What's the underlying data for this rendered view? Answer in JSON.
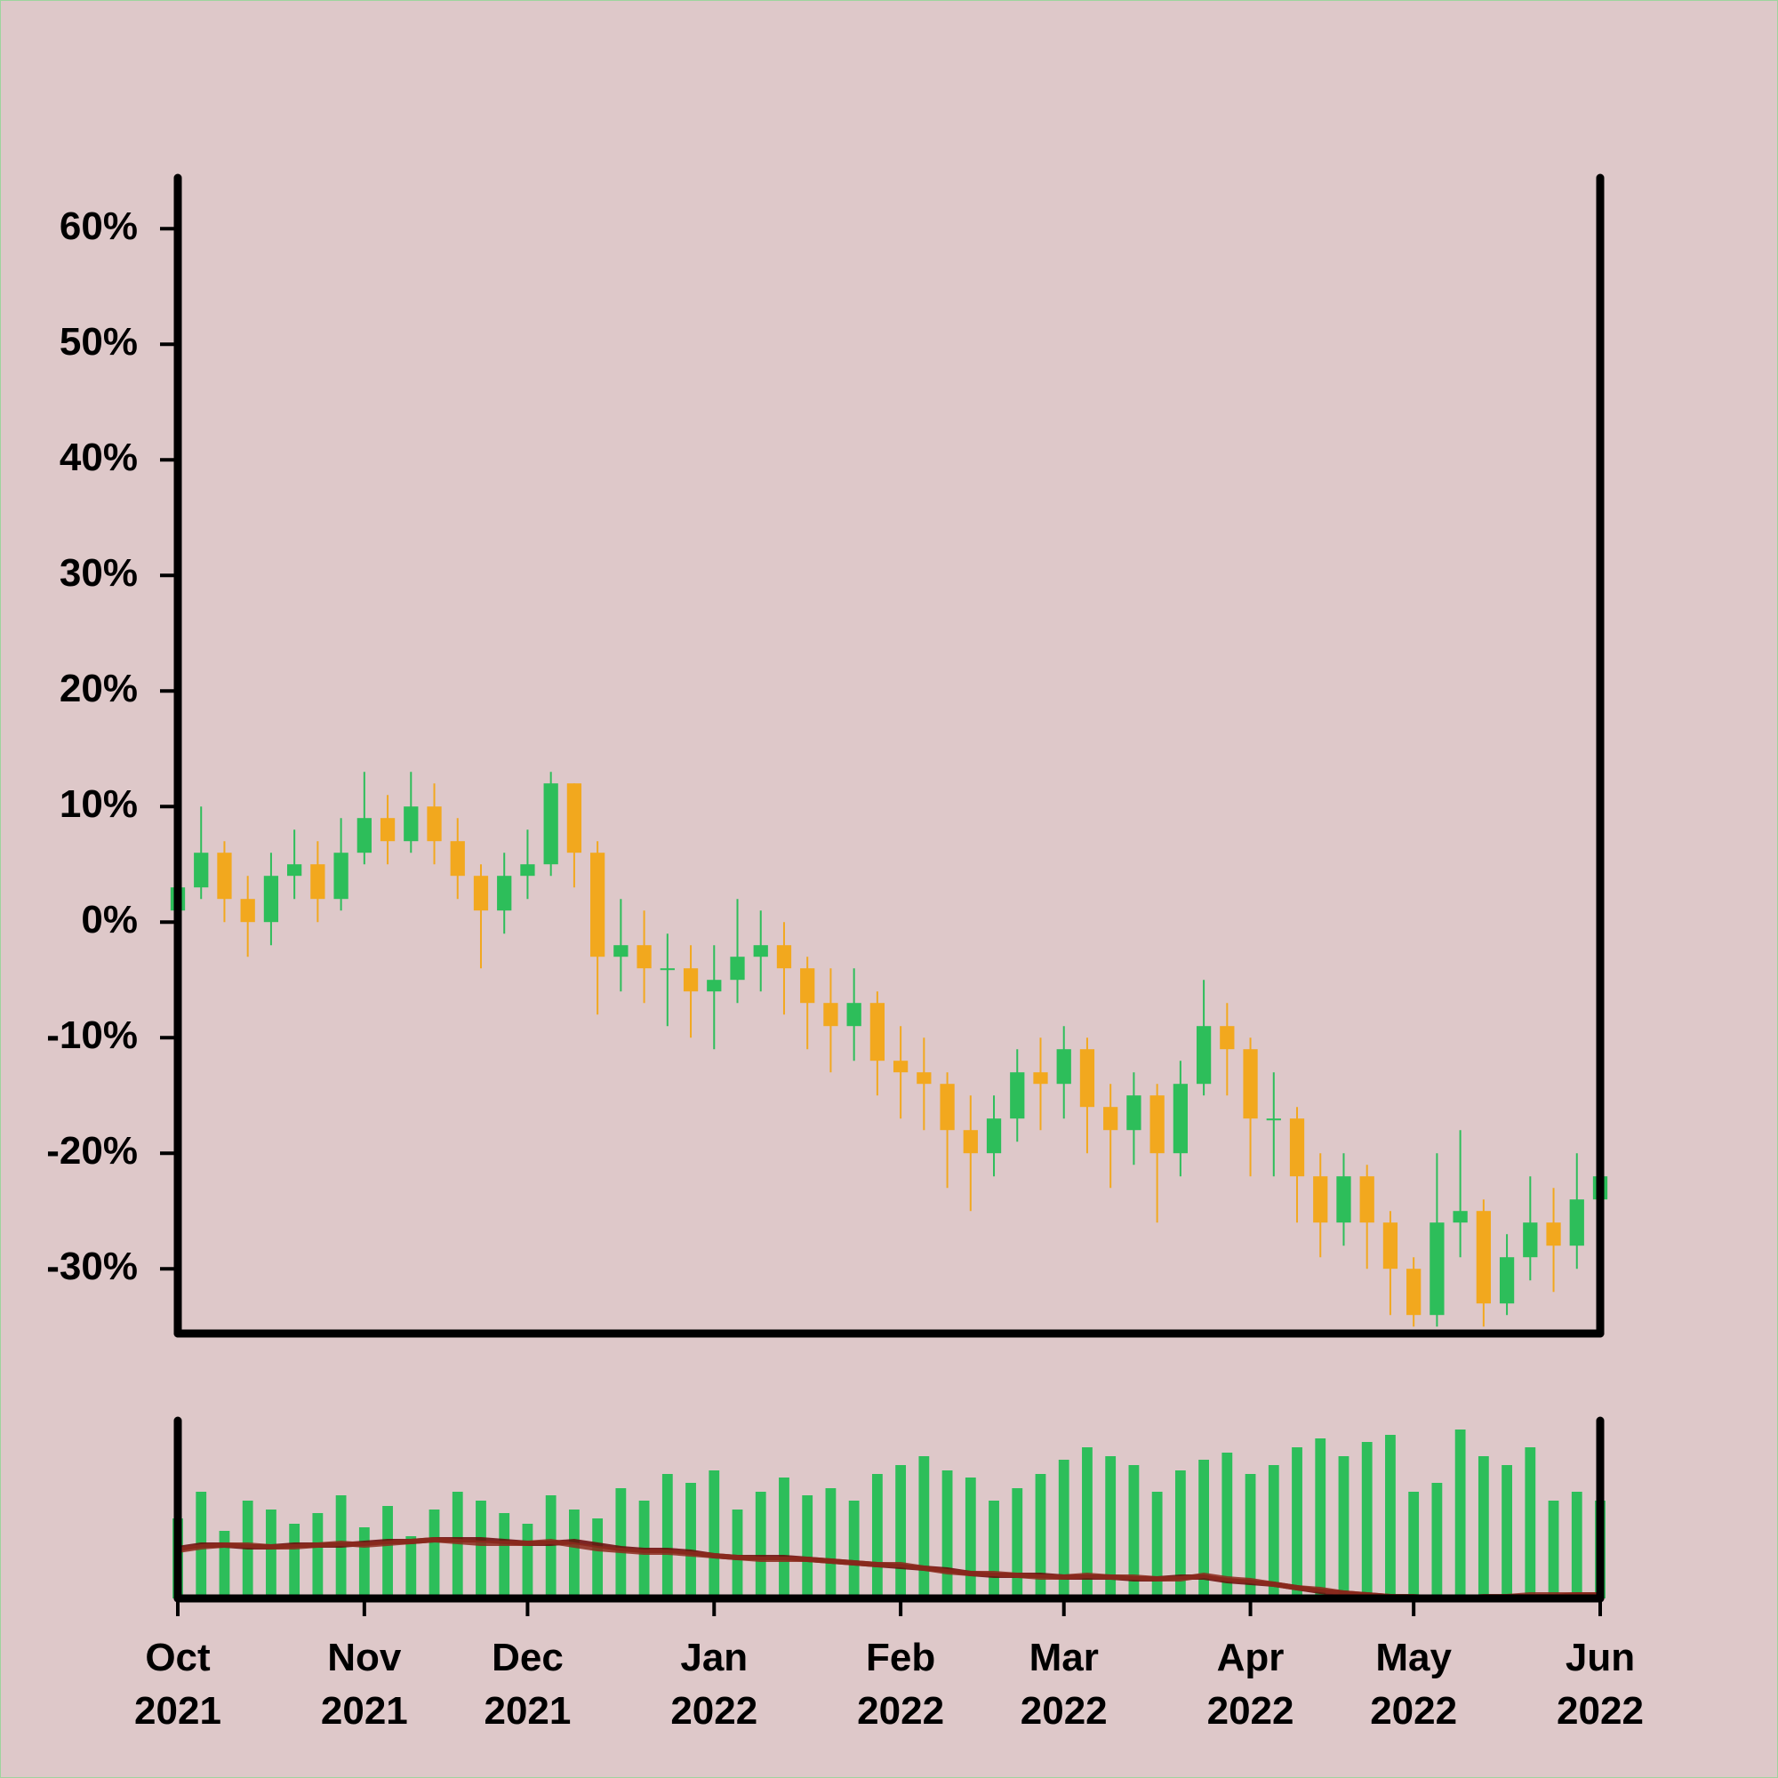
{
  "chart_data": {
    "type": "candlestick",
    "categories": [
      "Oct\n2021",
      null,
      null,
      null,
      null,
      null,
      null,
      null,
      "Nov\n2021",
      null,
      null,
      null,
      null,
      null,
      null,
      "Dec\n2021",
      null,
      null,
      null,
      null,
      null,
      null,
      null,
      "Jan\n2022",
      null,
      null,
      null,
      null,
      null,
      null,
      null,
      "Feb\n2022",
      null,
      null,
      null,
      null,
      null,
      null,
      "Mar\n2022",
      null,
      null,
      null,
      null,
      null,
      null,
      null,
      "Apr\n2022",
      null,
      null,
      null,
      null,
      null,
      null,
      "May\n2022",
      null,
      null,
      null,
      null,
      null,
      null,
      null,
      "Jun\n2022"
    ],
    "open": [
      1,
      3,
      6,
      2,
      0,
      4,
      5,
      2,
      6,
      9,
      7,
      10,
      7,
      4,
      1,
      4,
      5,
      12,
      6,
      -3,
      -2,
      -4,
      -4,
      -6,
      -5,
      -3,
      -2,
      -4,
      -7,
      -9,
      -7,
      -12,
      -13,
      -14,
      -18,
      -20,
      -17,
      -13,
      -14,
      -11,
      -16,
      -18,
      -15,
      -20,
      -14,
      -9,
      -11,
      -17,
      -17,
      -22,
      -26,
      -22,
      -26,
      -30,
      -34,
      -26,
      -25,
      -33,
      -29,
      -26,
      -28,
      -24
    ],
    "high": [
      5,
      10,
      7,
      4,
      6,
      8,
      7,
      9,
      13,
      11,
      13,
      12,
      9,
      5,
      6,
      8,
      13,
      12,
      7,
      2,
      1,
      -1,
      -2,
      -2,
      2,
      1,
      0,
      -3,
      -4,
      -4,
      -6,
      -9,
      -10,
      -13,
      -15,
      -15,
      -11,
      -10,
      -9,
      -10,
      -14,
      -13,
      -14,
      -12,
      -5,
      -7,
      -10,
      -13,
      -16,
      -20,
      -20,
      -21,
      -25,
      -29,
      -20,
      -18,
      -24,
      -27,
      -22,
      -23,
      -20,
      -19
    ],
    "low": [
      -1,
      2,
      0,
      -3,
      -2,
      2,
      0,
      1,
      5,
      5,
      6,
      5,
      2,
      -4,
      -1,
      2,
      4,
      3,
      -8,
      -6,
      -7,
      -9,
      -10,
      -11,
      -7,
      -6,
      -8,
      -11,
      -13,
      -12,
      -15,
      -17,
      -18,
      -23,
      -25,
      -22,
      -19,
      -18,
      -17,
      -20,
      -23,
      -21,
      -26,
      -22,
      -15,
      -15,
      -22,
      -22,
      -26,
      -29,
      -28,
      -30,
      -34,
      -35,
      -35,
      -29,
      -35,
      -34,
      -31,
      -32,
      -30,
      -26
    ],
    "close": [
      3,
      6,
      2,
      0,
      4,
      5,
      2,
      6,
      9,
      7,
      10,
      7,
      4,
      1,
      4,
      5,
      12,
      6,
      -3,
      -2,
      -4,
      -4,
      -6,
      -5,
      -3,
      -2,
      -4,
      -7,
      -9,
      -7,
      -12,
      -13,
      -14,
      -18,
      -20,
      -17,
      -13,
      -14,
      -11,
      -16,
      -18,
      -15,
      -20,
      -14,
      -9,
      -11,
      -17,
      -17,
      -22,
      -26,
      -22,
      -26,
      -30,
      -34,
      -26,
      -25,
      -33,
      -29,
      -26,
      -28,
      -24,
      -22
    ],
    "up_color": "#2dbe5a",
    "down_color": "#f2a81e",
    "ylim": [
      -35.6,
      64.4
    ],
    "yticks": [
      {
        "value": -30,
        "label": "-30%"
      },
      {
        "value": -20,
        "label": "-20%"
      },
      {
        "value": -10,
        "label": "-10%"
      },
      {
        "value": 0,
        "label": "0%"
      },
      {
        "value": 10,
        "label": "10%"
      },
      {
        "value": 20,
        "label": "20%"
      },
      {
        "value": 30,
        "label": "30%"
      },
      {
        "value": 40,
        "label": "40%"
      },
      {
        "value": 50,
        "label": "50%"
      },
      {
        "value": 60,
        "label": "60%"
      }
    ],
    "volume": {
      "type": "bar",
      "color": "#2dbe5a",
      "ylim": [
        0,
        100
      ],
      "values": [
        45,
        60,
        38,
        55,
        50,
        42,
        48,
        58,
        40,
        52,
        35,
        50,
        60,
        55,
        48,
        42,
        58,
        50,
        45,
        62,
        55,
        70,
        65,
        72,
        50,
        60,
        68,
        58,
        62,
        55,
        70,
        75,
        80,
        72,
        68,
        55,
        62,
        70,
        78,
        85,
        80,
        75,
        60,
        72,
        78,
        82,
        70,
        75,
        85,
        90,
        80,
        88,
        92,
        60,
        65,
        95,
        80,
        75,
        85,
        55,
        60,
        55
      ],
      "series": [
        {
          "color": "#6a0808",
          "values": [
            28,
            30,
            30,
            29,
            29,
            30,
            30,
            30,
            31,
            32,
            32,
            33,
            33,
            33,
            32,
            31,
            31,
            32,
            30,
            28,
            27,
            27,
            26,
            24,
            23,
            23,
            23,
            22,
            21,
            20,
            19,
            18,
            17,
            16,
            14,
            13,
            13,
            13,
            12,
            12,
            12,
            11,
            11,
            12,
            12,
            10,
            9,
            8,
            6,
            4,
            3,
            2,
            1,
            0,
            0,
            0,
            0,
            1,
            1,
            1,
            2,
            2
          ]
        },
        {
          "color": "#8c2a1c",
          "values": [
            27,
            29,
            30,
            30,
            29,
            29,
            30,
            31,
            30,
            31,
            32,
            33,
            32,
            31,
            31,
            31,
            32,
            30,
            28,
            27,
            26,
            26,
            25,
            24,
            23,
            22,
            22,
            22,
            21,
            20,
            19,
            19,
            17,
            15,
            14,
            14,
            13,
            12,
            12,
            13,
            12,
            12,
            11,
            11,
            13,
            11,
            10,
            8,
            6,
            5,
            3,
            2,
            1,
            1,
            0,
            0,
            1,
            1,
            2,
            2,
            2,
            2
          ]
        }
      ]
    }
  }
}
